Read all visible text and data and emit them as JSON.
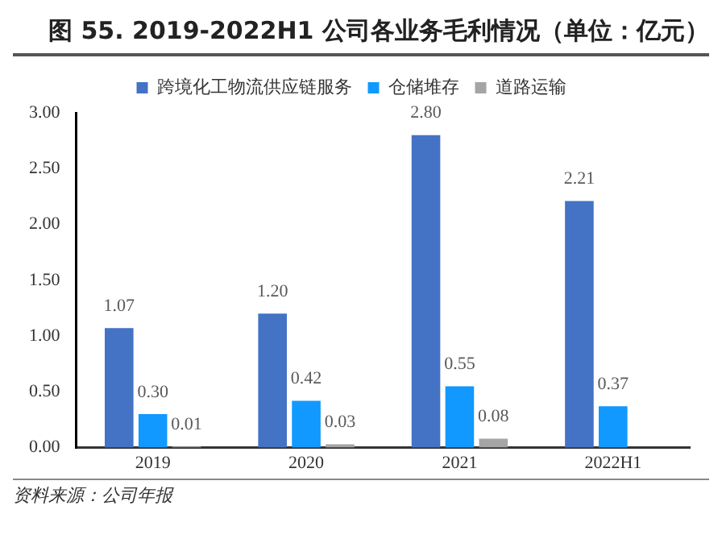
{
  "chart_data": {
    "type": "bar",
    "title": "图 55. 2019-2022H1 公司各业务毛利情况（单位：亿元）",
    "categories": [
      "2019",
      "2020",
      "2021",
      "2022H1"
    ],
    "series": [
      {
        "name": "跨境化工物流供应链服务",
        "color": "#4472c4",
        "values": [
          1.07,
          1.2,
          2.8,
          2.21
        ],
        "value_labels": [
          "1.07",
          "1.20",
          "2.80",
          "2.21"
        ]
      },
      {
        "name": "仓储堆存",
        "color": "#1199ff",
        "values": [
          0.3,
          0.42,
          0.55,
          0.37
        ],
        "value_labels": [
          "0.30",
          "0.42",
          "0.55",
          "0.37"
        ]
      },
      {
        "name": "道路运输",
        "color": "#a5a5a5",
        "values": [
          0.01,
          0.03,
          0.08,
          null
        ],
        "value_labels": [
          "0.01",
          "0.03",
          "0.08",
          null
        ]
      }
    ],
    "ylim": [
      0,
      3
    ],
    "yticks": [
      {
        "value": 0,
        "label": "0.00"
      },
      {
        "value": 0.5,
        "label": "0.50"
      },
      {
        "value": 1,
        "label": "1.00"
      },
      {
        "value": 1.5,
        "label": "1.50"
      },
      {
        "value": 2,
        "label": "2.00"
      },
      {
        "value": 2.5,
        "label": "2.50"
      },
      {
        "value": 3,
        "label": "3.00"
      }
    ],
    "grid": false,
    "legend": "top",
    "annotations": [
      "资料来源：公司年报"
    ]
  }
}
